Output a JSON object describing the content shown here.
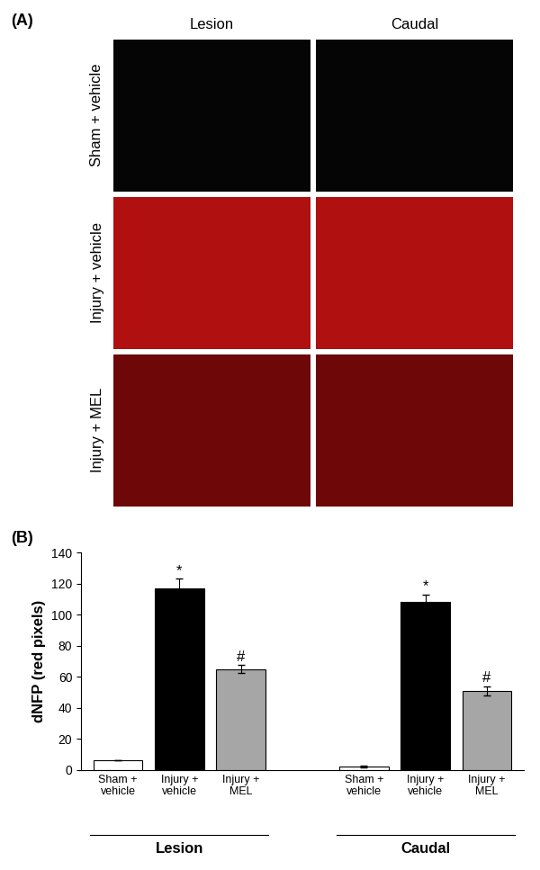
{
  "panel_a": {
    "label": "(A)",
    "columns": [
      "Lesion",
      "Caudal"
    ],
    "rows": [
      "Sham + vehicle",
      "Injury + vehicle",
      "Injury + MEL"
    ]
  },
  "chart_data": {
    "type": "bar",
    "label": "(B)",
    "y_label": "dNFP (red pixels)",
    "ylim": [
      0,
      140
    ],
    "yticks": [
      0,
      20,
      40,
      60,
      80,
      100,
      120,
      140
    ],
    "groups": [
      {
        "name": "Lesion",
        "categories": [
          "Sham +\nvehicle",
          "Injury +\nvehicle",
          "Injury +\nMEL"
        ],
        "values": [
          6,
          117,
          65
        ],
        "errors": [
          0,
          6,
          2.5
        ],
        "colors": [
          "#ffffff",
          "#000000",
          "#a6a6a6"
        ],
        "annotations": [
          null,
          "*",
          "#"
        ]
      },
      {
        "name": "Caudal",
        "categories": [
          "Sham +\nvehicle",
          "Injury +\nvehicle",
          "Injury +\nMEL"
        ],
        "values": [
          2,
          108,
          51
        ],
        "errors": [
          0.5,
          5,
          3
        ],
        "colors": [
          "#ffffff",
          "#000000",
          "#a6a6a6"
        ],
        "annotations": [
          null,
          "*",
          "#"
        ]
      }
    ]
  }
}
